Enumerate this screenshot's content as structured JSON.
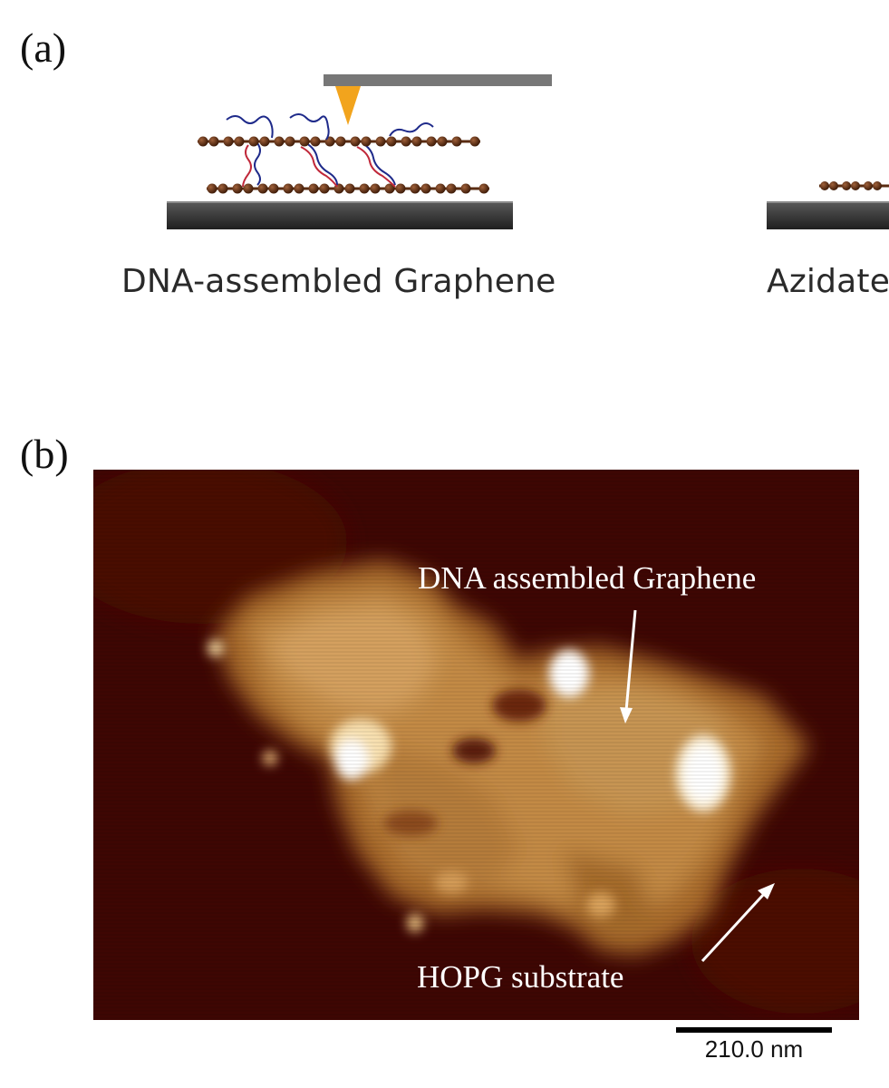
{
  "figure": {
    "panel_a": {
      "label": "(a)",
      "captions": [
        "DNA-assembled Graphene",
        "Azidate"
      ]
    },
    "panel_b": {
      "label": "(b)",
      "annotations": {
        "dna_graphene": "DNA assembled Graphene",
        "substrate": "HOPG substrate"
      },
      "scale_bar": "210.0 nm"
    }
  },
  "colors": {
    "afm_background": "#3e0603",
    "graphene_chain": "#5a2c12",
    "dna_strand_blue": "#1e2a8a",
    "dna_strand_red": "#c0283a",
    "afm_tip": "#f2a41d",
    "cantilever": "#777777",
    "substrate": "#333333"
  }
}
